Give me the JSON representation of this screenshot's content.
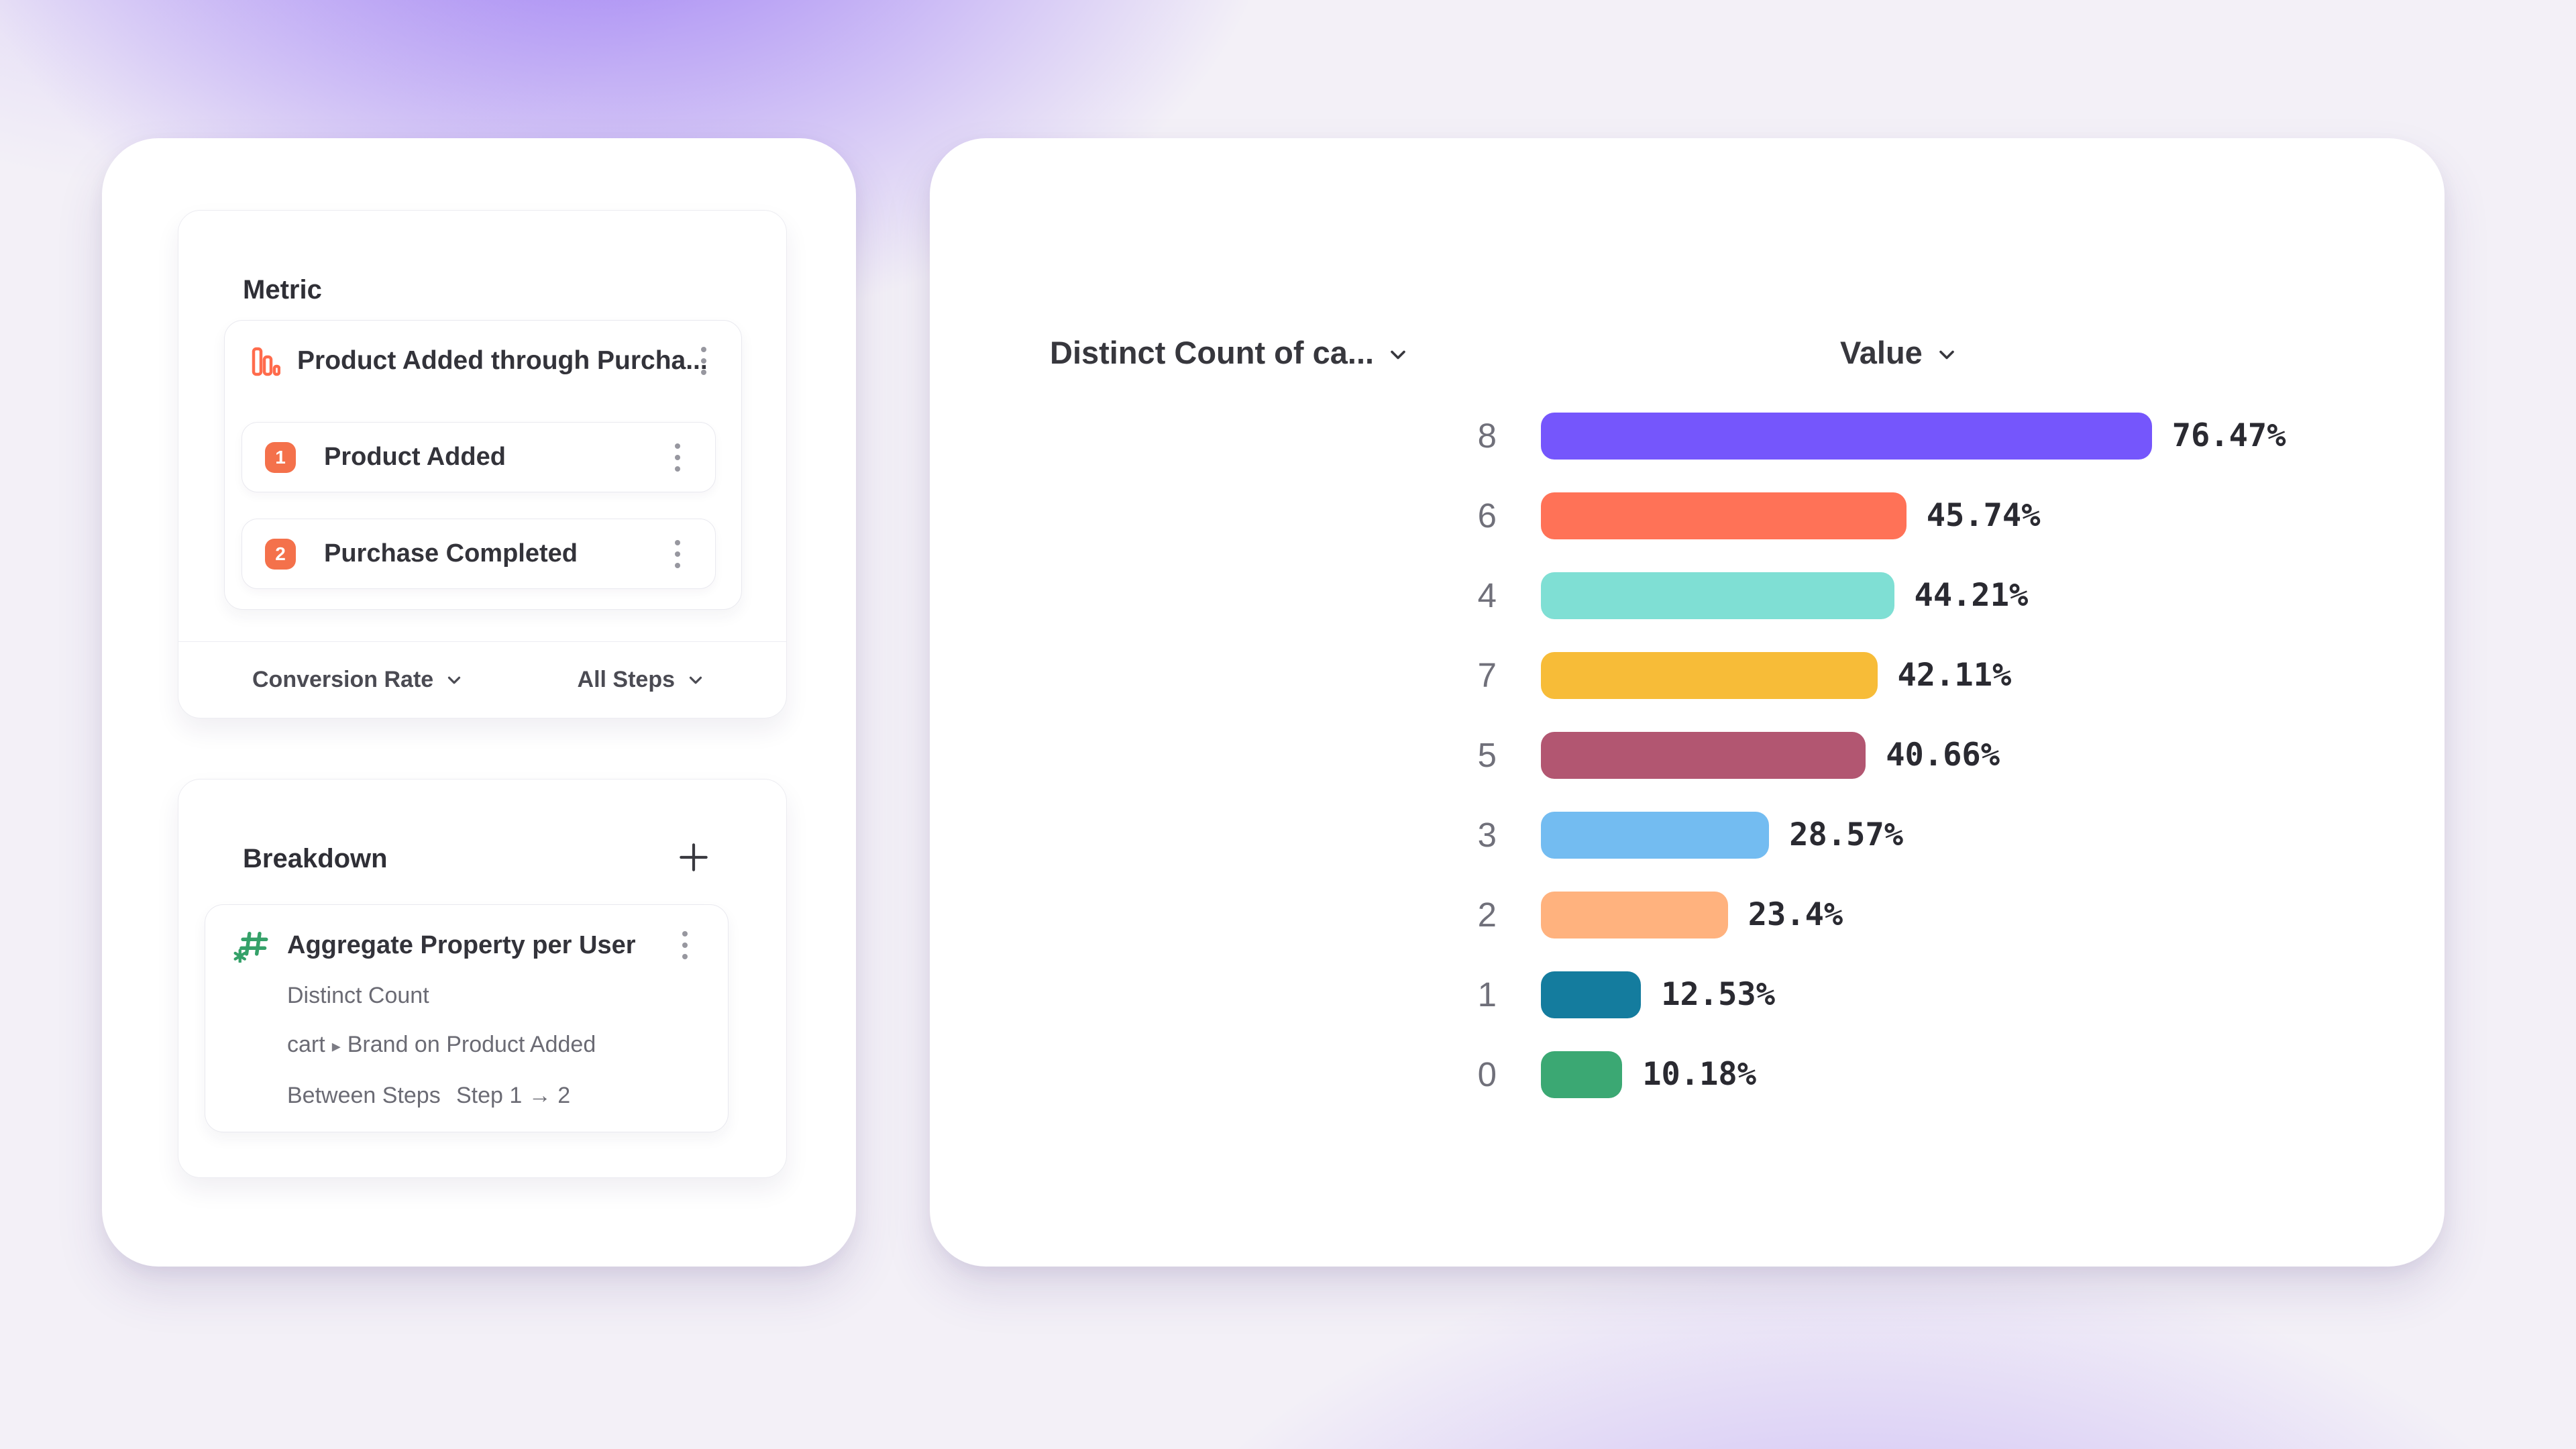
{
  "background": {
    "base_color": "#f3f0f7",
    "glow_color": "#8b64f3"
  },
  "metric_panel": {
    "title": "Metric",
    "funnel_name": "Product Added through Purcha...",
    "steps": [
      {
        "number": "1",
        "label": "Product Added"
      },
      {
        "number": "2",
        "label": "Purchase Completed"
      }
    ],
    "footer_left": "Conversion Rate",
    "footer_right": "All Steps",
    "badge_color": "#F4714B",
    "funnel_icon_color": "#FF6B4C"
  },
  "breakdown_panel": {
    "title": "Breakdown",
    "item_title": "Aggregate Property per User",
    "aggregation": "Distinct Count",
    "property_prefix": "cart",
    "property_separator": "▸",
    "property_suffix": "Brand on Product Added",
    "scope_label": "Between Steps",
    "scope_value": "Step 1 → 2",
    "hash_icon_color": "#35A169"
  },
  "chart": {
    "category_header": "Distinct Count of ca...",
    "value_header": "Value"
  },
  "chart_data": {
    "type": "bar",
    "orientation": "horizontal",
    "title": "",
    "xlabel": "Value",
    "ylabel": "Distinct Count of ca...",
    "xlim": [
      0,
      100
    ],
    "grid": false,
    "legend": false,
    "categories": [
      "8",
      "6",
      "4",
      "7",
      "5",
      "3",
      "2",
      "1",
      "0"
    ],
    "values": [
      76.47,
      45.74,
      44.21,
      42.11,
      40.66,
      28.57,
      23.4,
      12.53,
      10.18
    ],
    "labels": [
      "76.47%",
      "45.74%",
      "44.21%",
      "42.11%",
      "40.66%",
      "28.57%",
      "23.4%",
      "12.53%",
      "10.18%"
    ],
    "colors": [
      "#7556FC",
      "#FF7257",
      "#7FDFD4",
      "#F7BC38",
      "#B25671",
      "#73BCF1",
      "#FFB27E",
      "#147C9E",
      "#3BA873"
    ]
  }
}
